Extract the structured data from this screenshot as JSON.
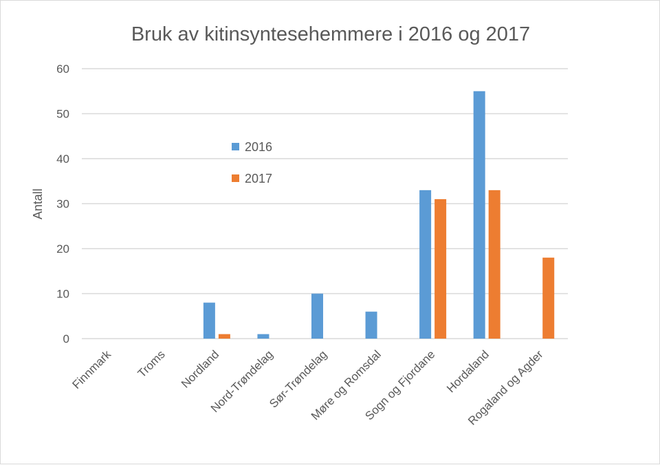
{
  "chart_data": {
    "type": "bar",
    "title": "Bruk av kitinsyntesehemmere i 2016 og 2017",
    "xlabel": "",
    "ylabel": "Antall",
    "ylim": [
      0,
      60
    ],
    "yticks": [
      0,
      10,
      20,
      30,
      40,
      50,
      60
    ],
    "grid": true,
    "legend_position": "inside-left",
    "categories": [
      "Finnmark",
      "Troms",
      "Nordland",
      "Nord-Trøndelag",
      "Sør-Trøndelag",
      "Møre og Romsdal",
      "Sogn og Fjordane",
      "Hordaland",
      "Rogaland og Agder"
    ],
    "series": [
      {
        "name": "2016",
        "color": "#5b9bd5",
        "values": [
          0,
          0,
          8,
          1,
          10,
          6,
          33,
          55,
          0
        ]
      },
      {
        "name": "2017",
        "color": "#ed7d31",
        "values": [
          0,
          0,
          1,
          0,
          0,
          0,
          31,
          33,
          18
        ]
      }
    ]
  }
}
